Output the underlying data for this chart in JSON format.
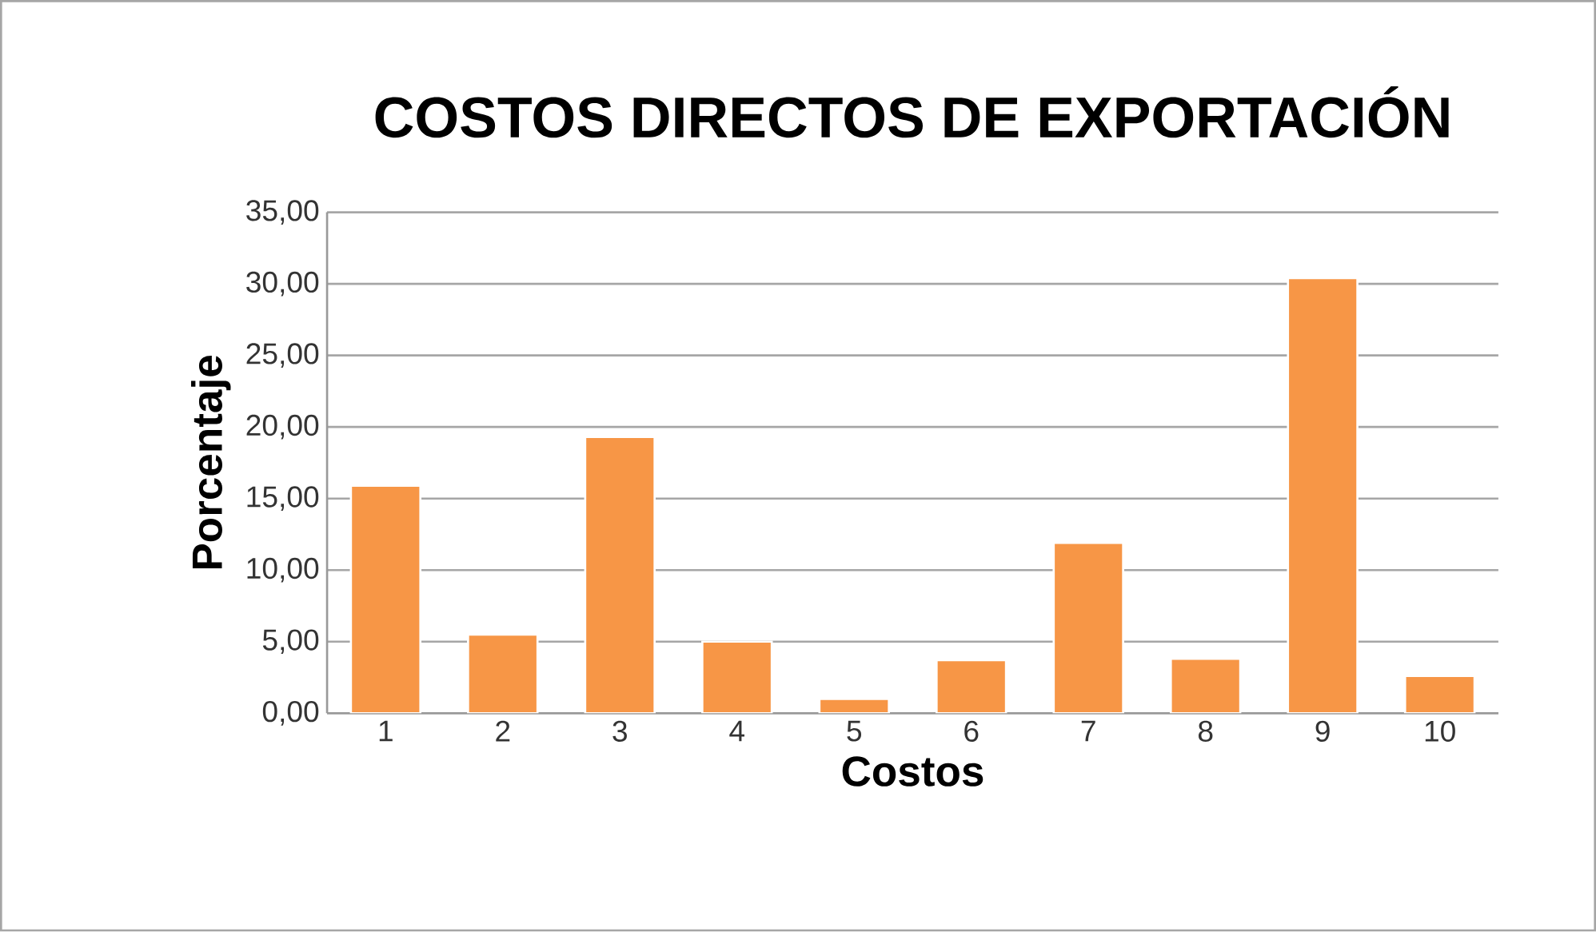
{
  "chart_data": {
    "type": "bar",
    "title": "COSTOS DIRECTOS DE EXPORTACIÓN",
    "xlabel": "Costos",
    "ylabel": "Porcentaje",
    "categories": [
      "1",
      "2",
      "3",
      "4",
      "5",
      "6",
      "7",
      "8",
      "9",
      "10"
    ],
    "values": [
      15.9,
      5.5,
      19.3,
      5.0,
      1.0,
      3.7,
      11.9,
      3.8,
      30.4,
      2.6
    ],
    "color": "#f79646",
    "ylim": [
      0,
      35
    ],
    "yticks": [
      {
        "value": 0,
        "label": "0,00"
      },
      {
        "value": 5,
        "label": "5,00"
      },
      {
        "value": 10,
        "label": "10,00"
      },
      {
        "value": 15,
        "label": "15,00"
      },
      {
        "value": 20,
        "label": "20,00"
      },
      {
        "value": 25,
        "label": "25,00"
      },
      {
        "value": 30,
        "label": "30,00"
      },
      {
        "value": 35,
        "label": "35,00"
      }
    ],
    "grid": "y"
  }
}
